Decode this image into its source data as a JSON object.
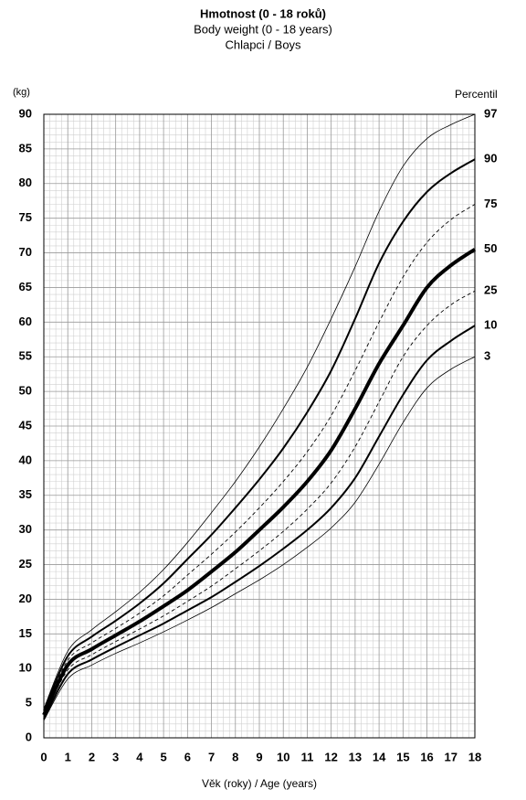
{
  "chart_data": {
    "type": "line",
    "title": "Hmotnost (0 - 18 roků)",
    "subtitle": "Body weight (0 - 18 years)",
    "subtitle2": "Chlapci / Boys",
    "y_unit": "(kg)",
    "legend_title": "Percentil",
    "xlabel": "Věk (roky) / Age (years)",
    "x": [
      0,
      1,
      2,
      3,
      4,
      5,
      6,
      7,
      8,
      9,
      10,
      11,
      12,
      13,
      14,
      15,
      16,
      17,
      18
    ],
    "xlim": [
      0,
      18
    ],
    "xticks": [
      0,
      1,
      2,
      3,
      4,
      5,
      6,
      7,
      8,
      9,
      10,
      11,
      12,
      13,
      14,
      15,
      16,
      17,
      18
    ],
    "ylim": [
      0,
      90
    ],
    "yticks": [
      0,
      5,
      10,
      15,
      20,
      25,
      30,
      35,
      40,
      45,
      50,
      55,
      60,
      65,
      70,
      75,
      80,
      85,
      90
    ],
    "grid": true,
    "minor_grid": true,
    "series": [
      {
        "name": "97",
        "color": "#000000",
        "linewidth": 0.8,
        "dashed": false,
        "values": [
          4.2,
          12.5,
          15.6,
          18.2,
          21,
          24.3,
          28.2,
          32.5,
          37,
          42,
          47.5,
          53.5,
          60.5,
          68,
          76,
          82.5,
          86.5,
          88.5,
          90
        ]
      },
      {
        "name": "90",
        "color": "#000000",
        "linewidth": 2,
        "dashed": false,
        "values": [
          3.9,
          11.8,
          14.6,
          16.9,
          19.4,
          22.3,
          25.8,
          29.3,
          33.2,
          37.3,
          41.8,
          47,
          53,
          60.5,
          68.5,
          74.5,
          78.8,
          81.5,
          83.5
        ]
      },
      {
        "name": "75",
        "color": "#000000",
        "linewidth": 0.9,
        "dashed": true,
        "values": [
          3.6,
          11.2,
          13.7,
          15.8,
          18,
          20.5,
          23.5,
          26.5,
          29.7,
          33.2,
          37,
          41.3,
          46.5,
          53,
          60,
          66.5,
          71.5,
          74.8,
          77
        ]
      },
      {
        "name": "50",
        "color": "#000000",
        "linewidth": 4,
        "dashed": false,
        "values": [
          3.3,
          10.5,
          12.8,
          14.8,
          16.8,
          19,
          21.3,
          24,
          26.8,
          30,
          33.3,
          37,
          41.5,
          47.5,
          54,
          59.5,
          65,
          68.2,
          70.5
        ]
      },
      {
        "name": "25",
        "color": "#000000",
        "linewidth": 0.9,
        "dashed": true,
        "values": [
          3,
          9.8,
          12,
          13.9,
          15.7,
          17.6,
          19.7,
          21.9,
          24.4,
          27,
          29.8,
          33,
          36.8,
          42,
          48.5,
          55,
          59.5,
          62.5,
          64.5
        ]
      },
      {
        "name": "10",
        "color": "#000000",
        "linewidth": 2,
        "dashed": false,
        "values": [
          2.7,
          9.2,
          11.3,
          13.1,
          14.8,
          16.5,
          18.4,
          20.3,
          22.5,
          24.8,
          27.3,
          30,
          33.2,
          37.5,
          43.5,
          49.5,
          54.5,
          57.3,
          59.5
        ]
      },
      {
        "name": "3",
        "color": "#000000",
        "linewidth": 0.8,
        "dashed": false,
        "values": [
          2.5,
          8.5,
          10.5,
          12.2,
          13.7,
          15.3,
          17,
          18.8,
          20.8,
          22.8,
          25,
          27.5,
          30.3,
          34,
          39.5,
          45.5,
          50.5,
          53.2,
          55
        ]
      }
    ]
  }
}
